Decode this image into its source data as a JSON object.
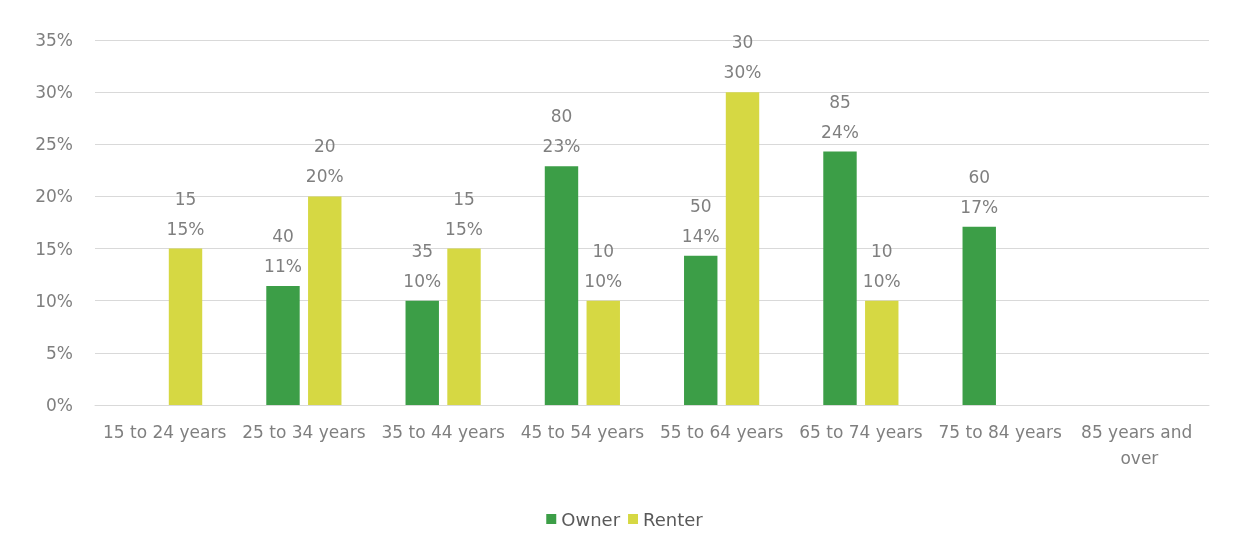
{
  "chart_data": {
    "type": "bar",
    "categories": [
      "15 to 24 years",
      "25 to 34 years",
      "35 to 44 years",
      "45 to 54 years",
      "55 to 64 years",
      "65 to 74 years",
      "75 to 84 years",
      "85 years and over"
    ],
    "series": [
      {
        "name": "Owner",
        "color": "#3c9e47",
        "values": [
          null,
          11.4,
          10,
          22.9,
          14.3,
          24.3,
          17.1,
          null
        ],
        "value_labels": [
          null,
          "40\n11%",
          "35\n10%",
          "80\n23%",
          "50\n14%",
          "85\n24%",
          "60\n17%",
          null
        ]
      },
      {
        "name": "Renter",
        "color": "#d6d843",
        "values": [
          15,
          20,
          15,
          10,
          30,
          10,
          null,
          null
        ],
        "value_labels": [
          "15\n15%",
          "20\n20%",
          "15\n15%",
          "10\n10%",
          "30\n30%",
          "10\n10%",
          null,
          null
        ]
      }
    ],
    "ylim": [
      0,
      35
    ],
    "yticks": [
      {
        "value": 0,
        "label": "0%"
      },
      {
        "value": 5,
        "label": "5%"
      },
      {
        "value": 10,
        "label": "10%"
      },
      {
        "value": 15,
        "label": "15%"
      },
      {
        "value": 20,
        "label": "20%"
      },
      {
        "value": 25,
        "label": "25%"
      },
      {
        "value": 30,
        "label": "30%"
      },
      {
        "value": 35,
        "label": "35%"
      }
    ],
    "grid": "y",
    "legend": "bottom"
  }
}
